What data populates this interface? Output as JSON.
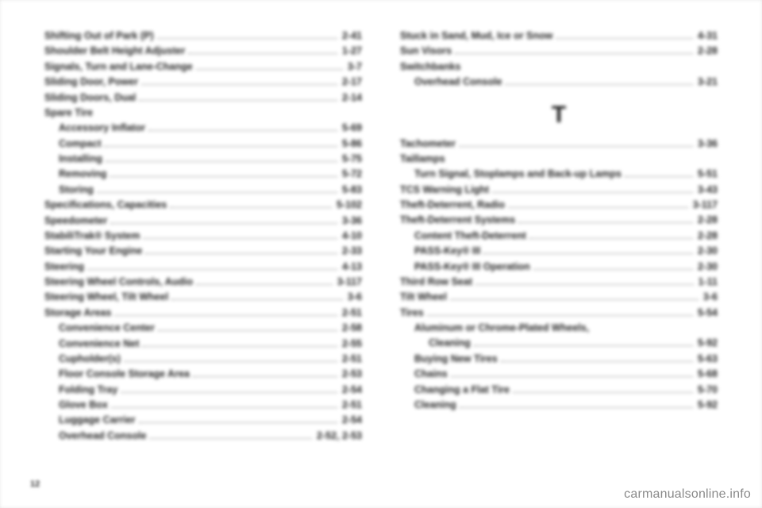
{
  "footer_page": "12",
  "watermark": "carmanualsonline.info",
  "section_letter": "T",
  "left": [
    {
      "label": "Shifting Out of Park (P)",
      "page": "2-41",
      "indent": false
    },
    {
      "label": "Shoulder Belt Height Adjuster",
      "page": "1-27",
      "indent": false
    },
    {
      "label": "Signals, Turn and Lane-Change",
      "page": "3-7",
      "indent": false
    },
    {
      "label": "Sliding Door, Power",
      "page": "2-17",
      "indent": false
    },
    {
      "label": "Sliding Doors, Dual",
      "page": "2-14",
      "indent": false
    },
    {
      "label": "Spare Tire",
      "page": "",
      "indent": false,
      "nodots": true
    },
    {
      "label": "Accessory Inflator",
      "page": "5-69",
      "indent": true
    },
    {
      "label": "Compact",
      "page": "5-86",
      "indent": true
    },
    {
      "label": "Installing",
      "page": "5-75",
      "indent": true
    },
    {
      "label": "Removing",
      "page": "5-72",
      "indent": true
    },
    {
      "label": "Storing",
      "page": "5-83",
      "indent": true
    },
    {
      "label": "Specifications, Capacities",
      "page": "5-102",
      "indent": false
    },
    {
      "label": "Speedometer",
      "page": "3-36",
      "indent": false
    },
    {
      "label": "StabiliTrak® System",
      "page": "4-10",
      "indent": false
    },
    {
      "label": "Starting Your Engine",
      "page": "2-33",
      "indent": false
    },
    {
      "label": "Steering",
      "page": "4-13",
      "indent": false
    },
    {
      "label": "Steering Wheel Controls, Audio",
      "page": "3-117",
      "indent": false
    },
    {
      "label": "Steering Wheel, Tilt Wheel",
      "page": "3-6",
      "indent": false
    },
    {
      "label": "Storage Areas",
      "page": "2-51",
      "indent": false
    },
    {
      "label": "Convenience Center",
      "page": "2-58",
      "indent": true
    },
    {
      "label": "Convenience Net",
      "page": "2-55",
      "indent": true
    },
    {
      "label": "Cupholder(s)",
      "page": "2-51",
      "indent": true
    },
    {
      "label": "Floor Console Storage Area",
      "page": "2-53",
      "indent": true
    },
    {
      "label": "Folding Tray",
      "page": "2-54",
      "indent": true
    },
    {
      "label": "Glove Box",
      "page": "2-51",
      "indent": true
    },
    {
      "label": "Luggage Carrier",
      "page": "2-54",
      "indent": true
    },
    {
      "label": "Overhead Console",
      "page": "2-52, 2-53",
      "indent": true
    }
  ],
  "right_top": [
    {
      "label": "Stuck in Sand, Mud, Ice or Snow",
      "page": "4-31",
      "indent": false
    },
    {
      "label": "Sun Visors",
      "page": "2-28",
      "indent": false
    },
    {
      "label": "Switchbanks",
      "page": "",
      "indent": false,
      "nodots": true
    },
    {
      "label": "Overhead Console",
      "page": "3-21",
      "indent": true
    }
  ],
  "right_bottom": [
    {
      "label": "Tachometer",
      "page": "3-36",
      "indent": false
    },
    {
      "label": "Taillamps",
      "page": "",
      "indent": false,
      "nodots": true
    },
    {
      "label": "Turn Signal, Stoplamps and Back-up Lamps",
      "page": "5-51",
      "indent": true
    },
    {
      "label": "TCS Warning Light",
      "page": "3-43",
      "indent": false
    },
    {
      "label": "Theft-Deterrent, Radio",
      "page": "3-117",
      "indent": false
    },
    {
      "label": "Theft-Deterrent Systems",
      "page": "2-28",
      "indent": false
    },
    {
      "label": "Content Theft-Deterrent",
      "page": "2-28",
      "indent": true
    },
    {
      "label": "PASS-Key® III",
      "page": "2-30",
      "indent": true
    },
    {
      "label": "PASS-Key® III Operation",
      "page": "2-30",
      "indent": true
    },
    {
      "label": "Third Row Seat",
      "page": "1-11",
      "indent": false
    },
    {
      "label": "Tilt Wheel",
      "page": "3-6",
      "indent": false
    },
    {
      "label": "Tires",
      "page": "5-54",
      "indent": false
    },
    {
      "label": "Aluminum or Chrome-Plated Wheels,",
      "page": "",
      "indent": true,
      "nodots": true
    },
    {
      "label": "Cleaning",
      "page": "5-92",
      "indent": true,
      "extra_indent": true
    },
    {
      "label": "Buying New Tires",
      "page": "5-63",
      "indent": true
    },
    {
      "label": "Chains",
      "page": "5-68",
      "indent": true
    },
    {
      "label": "Changing a Flat Tire",
      "page": "5-70",
      "indent": true
    },
    {
      "label": "Cleaning",
      "page": "5-92",
      "indent": true
    }
  ]
}
